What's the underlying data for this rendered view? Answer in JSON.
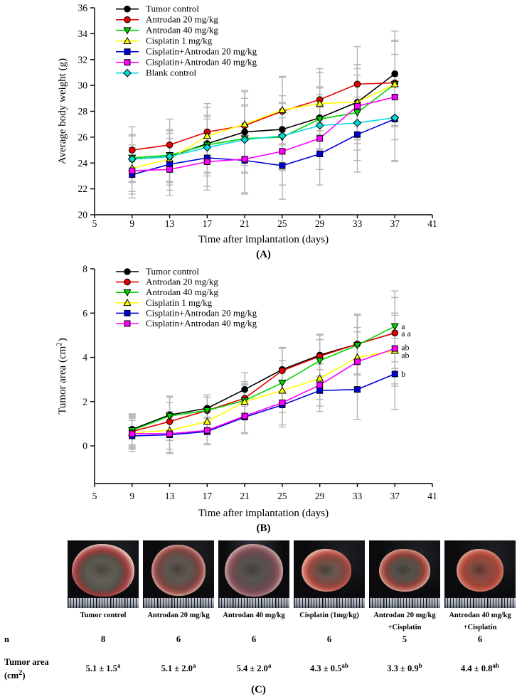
{
  "chart_data": [
    {
      "id": "A",
      "type": "line",
      "caption": "(A)",
      "xlabel": "Time after implantation (days)",
      "ylabel_parts": [
        {
          "t": "Average body weight (g)"
        }
      ],
      "x": [
        9,
        13,
        17,
        21,
        25,
        29,
        33,
        37
      ],
      "xticks": [
        5,
        9,
        13,
        17,
        21,
        25,
        29,
        33,
        37,
        41
      ],
      "xlim": [
        5,
        41
      ],
      "yticks": [
        20,
        22,
        24,
        26,
        28,
        30,
        32,
        34,
        36
      ],
      "ylim": [
        20,
        36
      ],
      "grid": false,
      "legend_position": "top-left",
      "error_color": "#b4b4b4",
      "errors": [
        1.8,
        2.0,
        2.2,
        2.6,
        2.6,
        2.4,
        2.9,
        3.3
      ],
      "series": [
        {
          "name": "Tumor control",
          "color": "#000000",
          "marker": "circle",
          "values": [
            24.3,
            24.5,
            25.5,
            26.4,
            26.6,
            27.5,
            28.7,
            30.9
          ]
        },
        {
          "name": "Antrodan 20 mg/kg",
          "color": "#e60000",
          "marker": "circle",
          "values": [
            25.0,
            25.4,
            26.4,
            26.9,
            28.0,
            28.9,
            30.1,
            30.2
          ]
        },
        {
          "name": "Antrodan 40 mg/kg",
          "color": "#00d400",
          "marker": "triangle-down",
          "values": [
            24.4,
            24.6,
            25.4,
            25.9,
            26.0,
            27.4,
            27.9,
            30.1
          ]
        },
        {
          "name": "Cisplatin 1 mg/kg",
          "color": "#ffff00",
          "marker": "triangle-up",
          "values": [
            23.6,
            24.3,
            26.1,
            27.0,
            28.1,
            28.6,
            28.7,
            30.1
          ]
        },
        {
          "name": "Cisplatin+Antrodan 20 mg/kg",
          "color": "#0000dd",
          "marker": "square",
          "values": [
            23.1,
            23.9,
            24.4,
            24.2,
            23.8,
            24.7,
            26.2,
            27.4
          ]
        },
        {
          "name": "Cisplatin+Antrodan 40 mg/kg",
          "color": "#ff00ff",
          "marker": "square",
          "values": [
            23.4,
            23.5,
            24.1,
            24.3,
            24.9,
            25.9,
            28.4,
            29.1
          ]
        },
        {
          "name": "Blank control",
          "color": "#00dddd",
          "marker": "diamond",
          "values": [
            24.3,
            24.5,
            25.2,
            25.8,
            26.1,
            26.9,
            27.1,
            27.5
          ]
        }
      ],
      "annotations": []
    },
    {
      "id": "B",
      "type": "line",
      "caption": "(B)",
      "xlabel": "Time after implantation (days)",
      "ylabel_parts": [
        {
          "t": "Tumor area (cm"
        },
        {
          "t": "2",
          "sup": true
        },
        {
          "t": ")"
        }
      ],
      "x": [
        9,
        13,
        17,
        21,
        25,
        29,
        33,
        37
      ],
      "xticks": [
        5,
        9,
        13,
        17,
        21,
        25,
        29,
        33,
        37,
        41
      ],
      "xlim": [
        5,
        41
      ],
      "yticks": [
        0,
        2,
        4,
        6,
        8
      ],
      "ylim": [
        -1.7,
        8
      ],
      "grid": false,
      "legend_position": "top-left",
      "error_color": "#b4b4b4",
      "errors": [
        0.7,
        0.85,
        0.6,
        0.75,
        1.0,
        0.95,
        1.35,
        1.6
      ],
      "series": [
        {
          "name": "Tumor control",
          "color": "#000000",
          "marker": "circle",
          "values": [
            0.75,
            1.4,
            1.7,
            2.55,
            3.45,
            4.1,
            4.6,
            5.1
          ]
        },
        {
          "name": "Antrodan 20 mg/kg",
          "color": "#e60000",
          "marker": "circle",
          "values": [
            0.65,
            1.1,
            1.6,
            2.15,
            3.4,
            4.05,
            4.6,
            5.1
          ]
        },
        {
          "name": "Antrodan 40 mg/kg",
          "color": "#00d400",
          "marker": "triangle-down",
          "values": [
            0.7,
            1.35,
            1.6,
            2.05,
            2.85,
            3.85,
            4.55,
            5.4
          ]
        },
        {
          "name": "Cisplatin 1 mg/kg",
          "color": "#ffff00",
          "marker": "triangle-up",
          "values": [
            0.6,
            0.7,
            1.1,
            2.0,
            2.5,
            3.05,
            4.0,
            4.3
          ]
        },
        {
          "name": "Cisplatin+Antrodan 20 mg/kg",
          "color": "#0000dd",
          "marker": "square",
          "values": [
            0.45,
            0.5,
            0.65,
            1.3,
            1.85,
            2.5,
            2.55,
            3.25
          ]
        },
        {
          "name": "Cisplatin+Antrodan 40 mg/kg",
          "color": "#ff00ff",
          "marker": "square",
          "values": [
            0.55,
            0.55,
            0.7,
            1.35,
            1.95,
            2.75,
            3.8,
            4.4
          ]
        }
      ],
      "annotations": [
        {
          "text": "a",
          "x": 37,
          "y": 5.4
        },
        {
          "text": "a a",
          "x": 37,
          "y": 5.08
        },
        {
          "text": "ab",
          "x": 37,
          "y": 4.45
        },
        {
          "text": "ab",
          "x": 37,
          "y": 4.1
        },
        {
          "text": "b",
          "x": 37,
          "y": 3.25
        }
      ]
    }
  ],
  "panel_c": {
    "caption": "(C)",
    "photos": [
      {
        "line1": "Tumor control",
        "line2": ""
      },
      {
        "line1": "Antrodan 20 mg/kg",
        "line2": ""
      },
      {
        "line1": "Antrodan 40 mg/kg",
        "line2": ""
      },
      {
        "line1": "Cisplatin (1mg/kg)",
        "line2": ""
      },
      {
        "line1": "Antrodan 20 mg/kg",
        "line2": "+Cisplatin"
      },
      {
        "line1": "Antrodan 40 mg/kg",
        "line2": "+Cisplatin"
      }
    ],
    "table": {
      "n_label": "n",
      "n_values": [
        "8",
        "6",
        "6",
        "6",
        "5",
        "6"
      ],
      "area_label": "Tumor area",
      "area_unit_pre": "(cm",
      "area_unit_sup": "2",
      "area_unit_post": ")",
      "area_values": [
        {
          "text": "5.1 ± 1.5",
          "sup": "a"
        },
        {
          "text": "5.1 ± 2.0",
          "sup": "a"
        },
        {
          "text": "5.4 ± 2.0",
          "sup": "a"
        },
        {
          "text": "4.3 ± 0.5",
          "sup": "ab"
        },
        {
          "text": "3.3 ± 0.9",
          "sup": "b"
        },
        {
          "text": "4.4 ± 0.8",
          "sup": "ab"
        }
      ]
    }
  }
}
